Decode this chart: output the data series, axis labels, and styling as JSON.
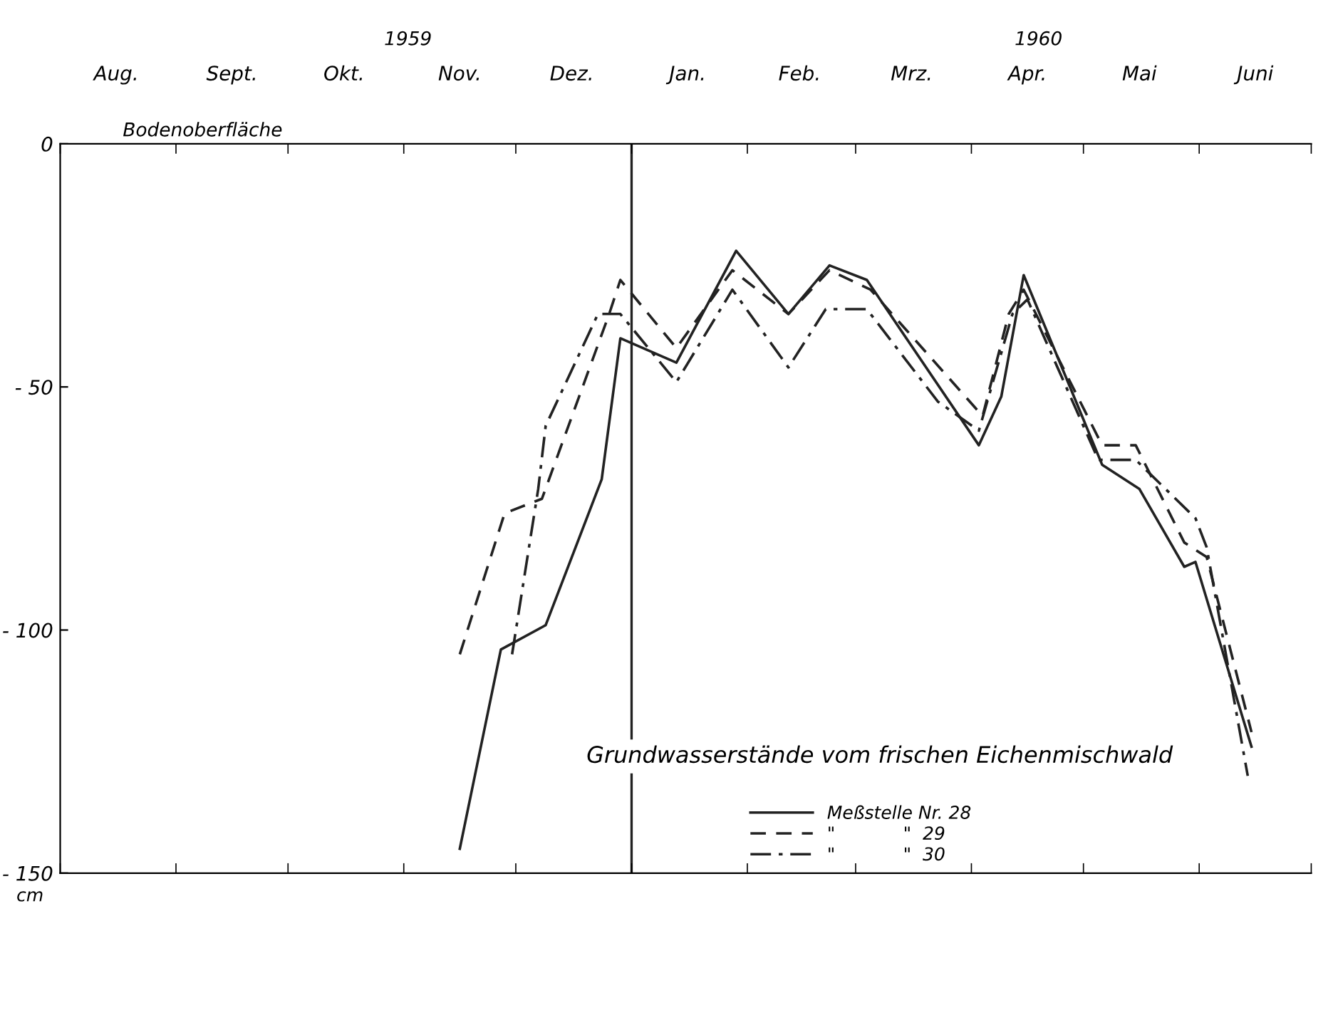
{
  "chart_data": {
    "type": "line",
    "title": "Grundwasserstände vom frischen Eichenmischwald",
    "ylabel": "cm",
    "annotations": [
      "1959",
      "1960",
      "Bodenoberfläche"
    ],
    "xlim": [
      "1959-08-01",
      "1960-07-01"
    ],
    "xticks": [
      {
        "value": "1959-08-01",
        "label": null
      },
      {
        "value": "1959-09-01",
        "label": null
      },
      {
        "value": "1959-10-01",
        "label": null
      },
      {
        "value": "1959-11-01",
        "label": null
      },
      {
        "value": "1959-12-01",
        "label": null
      },
      {
        "value": "1960-01-01",
        "label": null
      },
      {
        "value": "1960-02-01",
        "label": null
      },
      {
        "value": "1960-03-01",
        "label": null
      },
      {
        "value": "1960-04-01",
        "label": null
      },
      {
        "value": "1960-05-01",
        "label": null
      },
      {
        "value": "1960-06-01",
        "label": null
      },
      {
        "value": "1960-07-01",
        "label": null
      },
      {
        "value": "1959-08-16",
        "label": "Aug."
      },
      {
        "value": "1959-09-16",
        "label": "Sept."
      },
      {
        "value": "1959-10-16",
        "label": "Okt."
      },
      {
        "value": "1959-11-16",
        "label": "Nov."
      },
      {
        "value": "1959-12-16",
        "label": "Dez."
      },
      {
        "value": "1960-01-16",
        "label": "Jan."
      },
      {
        "value": "1960-02-15",
        "label": "Feb."
      },
      {
        "value": "1960-03-16",
        "label": "Mrz."
      },
      {
        "value": "1960-04-16",
        "label": "Apr."
      },
      {
        "value": "1960-05-16",
        "label": "Mai"
      },
      {
        "value": "1960-06-16",
        "label": "Juni"
      }
    ],
    "ylim": [
      -150,
      0
    ],
    "yticks": [
      0,
      {
        "value": -50,
        "label": "- 50"
      },
      {
        "value": -100,
        "label": "- 100"
      },
      {
        "value": -150,
        "label": "- 150"
      }
    ],
    "ref_lines": [
      {
        "axis": "x",
        "value": "1960-01-01",
        "label": null
      }
    ],
    "grid": false,
    "legend": "bottom",
    "marker": "none",
    "series": [
      {
        "name": "Meßstelle Nr. 28",
        "color": "#222222",
        "line_style": "solid",
        "x": [
          "1959-11-16",
          "1959-11-27",
          "1959-12-09",
          "1959-12-24",
          "1959-12-29",
          "1960-01-13",
          "1960-01-29",
          "1960-02-12",
          "1960-02-23",
          "1960-03-04",
          "1960-04-03",
          "1960-04-09",
          "1960-04-15",
          "1960-05-06",
          "1960-05-16",
          "1960-05-28",
          "1960-05-31",
          "1960-06-15"
        ],
        "values": [
          -145,
          -104,
          -99,
          -69,
          -40,
          -45,
          -22,
          -35,
          -25,
          -28,
          -62,
          -52,
          -27,
          -66,
          -71,
          -87,
          -86,
          -124
        ]
      },
      {
        "name": "\"            \"  29",
        "color": "#222222",
        "line_style": "dashed",
        "x": [
          "1959-11-16",
          "1959-11-28",
          "1959-12-08",
          "1959-12-26",
          "1959-12-29",
          "1960-01-13",
          "1960-01-28",
          "1960-02-12",
          "1960-02-23",
          "1960-03-05",
          "1960-04-04",
          "1960-04-11",
          "1960-04-15",
          "1960-05-06",
          "1960-05-15",
          "1960-05-28",
          "1960-06-03",
          "1960-06-15"
        ],
        "values": [
          -105,
          -76,
          -73,
          -35,
          -28,
          -42,
          -26,
          -35,
          -26,
          -30,
          -56,
          -35,
          -30,
          -62,
          -62,
          -82,
          -85,
          -121
        ]
      },
      {
        "name": "\"            \"  30",
        "color": "#222222",
        "line_style": "dashdot",
        "x": [
          "1959-11-30",
          "1959-12-07",
          "1959-12-09",
          "1959-12-23",
          "1959-12-29",
          "1960-01-13",
          "1960-01-28",
          "1960-02-12",
          "1960-02-22",
          "1960-03-04",
          "1960-03-23",
          "1960-04-03",
          "1960-04-12",
          "1960-04-16",
          "1960-05-05",
          "1960-05-15",
          "1960-05-31",
          "1960-06-03",
          "1960-06-14"
        ],
        "values": [
          -105,
          -71,
          -58,
          -35,
          -35,
          -49,
          -30,
          -46,
          -34,
          -34,
          -53,
          -59,
          -35,
          -32,
          -65,
          -65,
          -77,
          -83,
          -130
        ]
      }
    ]
  }
}
